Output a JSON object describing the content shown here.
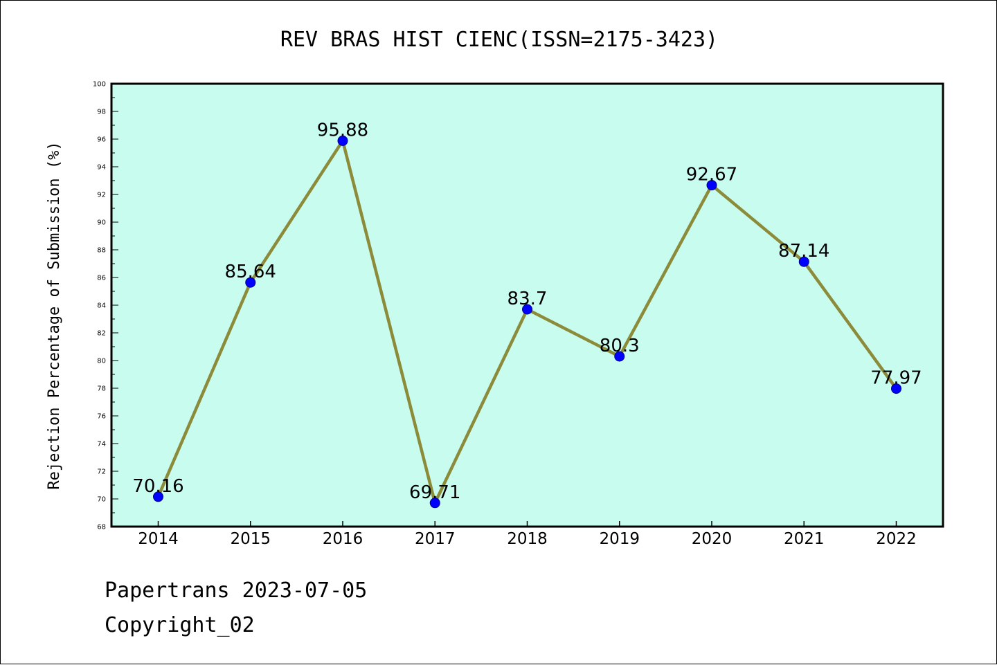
{
  "chart_data": {
    "type": "line",
    "title": "REV BRAS HIST CIENC(ISSN=2175-3423)",
    "xlabel": "",
    "ylabel": "Rejection Percentage of Submission (%)",
    "categories": [
      "2014",
      "2015",
      "2016",
      "2017",
      "2018",
      "2019",
      "2020",
      "2021",
      "2022"
    ],
    "series": [
      {
        "values": [
          70.16,
          85.64,
          95.88,
          69.71,
          83.7,
          80.3,
          92.67,
          87.14,
          77.97
        ],
        "labels": [
          "70.16",
          "85.64",
          "95.88",
          "69.71",
          "83.7",
          "80.3",
          "92.67",
          "87.14",
          "77.97"
        ],
        "line_color": "#8B8B3A",
        "marker_color": "#0000FF"
      }
    ],
    "ylim": [
      68,
      100
    ],
    "yticks": [
      "68",
      "70",
      "72",
      "74",
      "76",
      "78",
      "80",
      "82",
      "84",
      "86",
      "88",
      "90",
      "92",
      "94",
      "96",
      "98",
      "100"
    ],
    "grid": false,
    "plot_background": "#C8FCEF"
  },
  "footer": {
    "line1": "Papertrans 2023-07-05",
    "line2": "Copyright_02"
  }
}
